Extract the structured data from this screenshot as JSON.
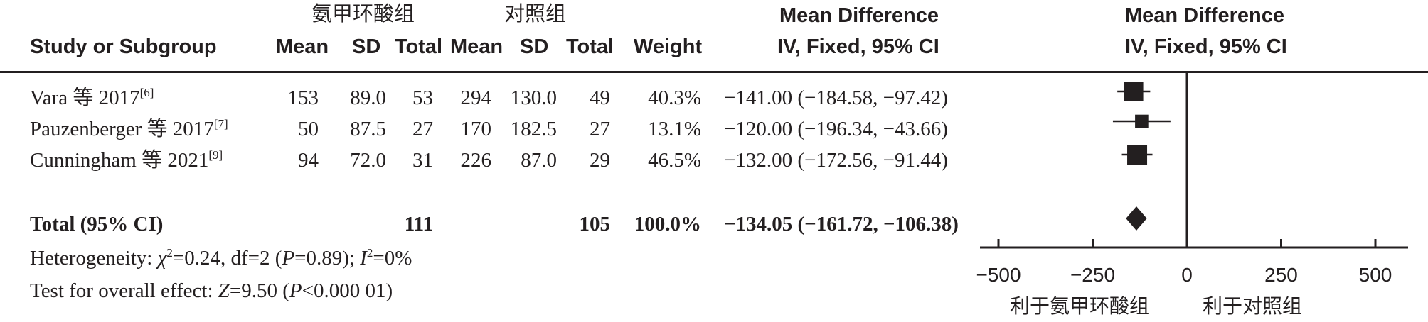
{
  "chart_data": {
    "type": "forest",
    "groups": {
      "experimental": "氨甲环酸组",
      "control": "对照组"
    },
    "columns": {
      "study": "Study or Subgroup",
      "mean": "Mean",
      "sd": "SD",
      "total": "Total",
      "weight": "Weight",
      "effect_header_line1": "Mean Difference",
      "effect_header_line2": "IV, Fixed, 95% CI"
    },
    "studies": [
      {
        "name": "Vara 等 2017",
        "ref": "[6]",
        "exp_mean": "153",
        "exp_sd": "89.0",
        "exp_total": "53",
        "ctl_mean": "294",
        "ctl_sd": "130.0",
        "ctl_total": "49",
        "weight": "40.3%",
        "ci_text": "−141.00 (−184.58, −97.42)",
        "md": -141.0,
        "lo": -184.58,
        "hi": -97.42,
        "weight_value": 40.3
      },
      {
        "name": "Pauzenberger 等 2017",
        "ref": "[7]",
        "exp_mean": "50",
        "exp_sd": "87.5",
        "exp_total": "27",
        "ctl_mean": "170",
        "ctl_sd": "182.5",
        "ctl_total": "27",
        "weight": "13.1%",
        "ci_text": "−120.00 (−196.34, −43.66)",
        "md": -120.0,
        "lo": -196.34,
        "hi": -43.66,
        "weight_value": 13.1
      },
      {
        "name": "Cunningham 等 2021",
        "ref": "[9]",
        "exp_mean": "94",
        "exp_sd": "72.0",
        "exp_total": "31",
        "ctl_mean": "226",
        "ctl_sd": "87.0",
        "ctl_total": "29",
        "weight": "46.5%",
        "ci_text": "−132.00 (−172.56, −91.44)",
        "md": -132.0,
        "lo": -172.56,
        "hi": -91.44,
        "weight_value": 46.5
      }
    ],
    "total": {
      "label": "Total (95% CI)",
      "exp_total": "111",
      "ctl_total": "105",
      "weight": "100.0%",
      "ci_text": "−134.05 (−161.72, −106.38)",
      "md": -134.05,
      "lo": -161.72,
      "hi": -106.38
    },
    "heterogeneity": {
      "prefix": "Heterogeneity: ",
      "chi": "χ",
      "chi_sup": "2",
      "chi_val": "=0.24, df=2 (",
      "p": "P",
      "p_val": "=0.89); ",
      "i": "I",
      "i_sup": "2",
      "i_val": "=0%"
    },
    "overall_effect": {
      "prefix": "Test for overall effect: ",
      "z": "Z",
      "z_val": "=9.50 (",
      "p": "P",
      "p_val": "<0.000 01)"
    },
    "axis": {
      "xlim": [
        -500,
        500
      ],
      "ticks": [
        "−500",
        "−250",
        "0",
        "250",
        "500"
      ],
      "tick_values": [
        -500,
        -250,
        0,
        250,
        500
      ]
    },
    "favours": {
      "left": "利于氨甲环酸组",
      "right": "利于对照组"
    }
  }
}
